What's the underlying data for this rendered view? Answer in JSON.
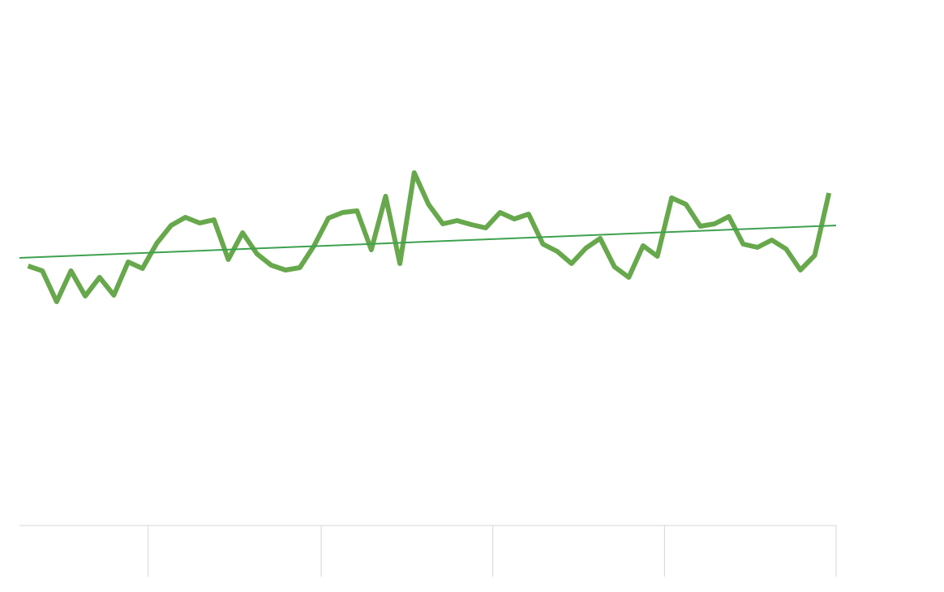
{
  "chart_data": {
    "type": "line",
    "x": [
      0,
      1,
      2,
      3,
      4,
      5,
      6,
      7,
      8,
      9,
      10,
      11,
      12,
      13,
      14,
      15,
      16,
      17,
      18,
      19,
      20,
      21,
      22,
      23,
      24,
      25,
      26,
      27,
      28,
      29,
      30,
      31,
      32,
      33,
      34,
      35,
      36,
      37,
      38,
      39,
      40,
      41,
      42,
      43,
      44,
      45,
      46,
      47,
      48,
      49,
      50,
      51,
      52,
      53,
      54,
      55,
      56
    ],
    "series": [
      {
        "color": "#67a84c",
        "values": [
          320,
          314,
          276,
          314,
          283,
          306,
          284,
          325,
          317,
          348,
          370,
          380,
          373,
          377,
          328,
          361,
          335,
          321,
          315,
          318,
          345,
          379,
          386,
          388,
          340,
          406,
          323,
          435,
          396,
          372,
          376,
          371,
          367,
          386,
          378,
          384,
          347,
          338,
          323,
          342,
          354,
          319,
          306,
          345,
          332,
          404,
          396,
          369,
          372,
          381,
          347,
          343,
          352,
          341,
          315,
          333,
          410
        ]
      }
    ],
    "trendline": {
      "x": [
        -0.6,
        56.5
      ],
      "values": [
        330,
        370
      ],
      "color": "#3ea14f"
    },
    "xlim": [
      -0.6,
      56.5
    ],
    "xticks": [
      8.4,
      20.5,
      32.5,
      44.5,
      56.5
    ],
    "ylim": [
      0,
      648
    ]
  }
}
